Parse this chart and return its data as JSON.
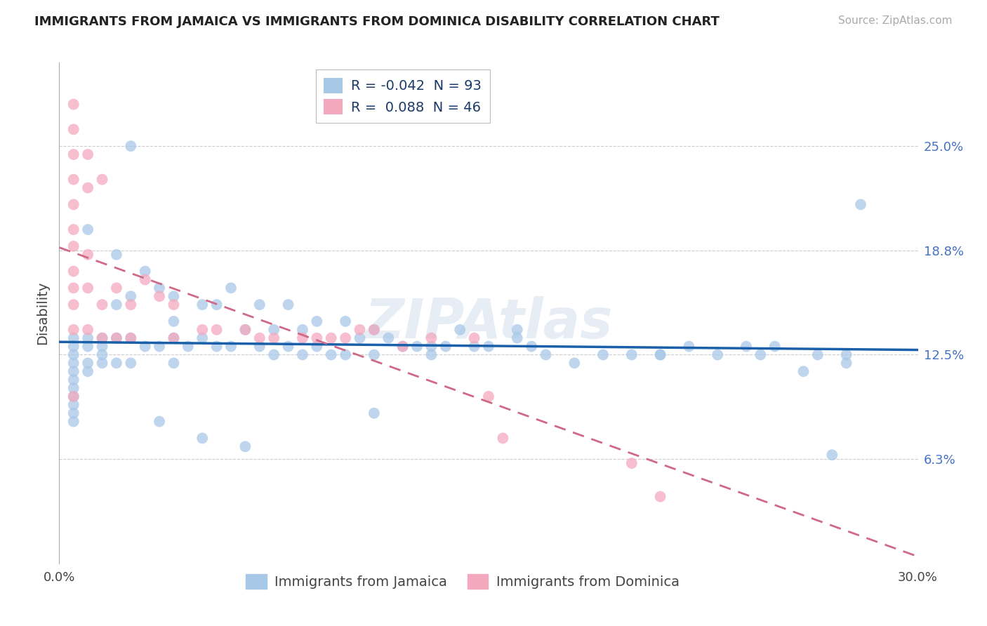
{
  "title": "IMMIGRANTS FROM JAMAICA VS IMMIGRANTS FROM DOMINICA DISABILITY CORRELATION CHART",
  "source": "Source: ZipAtlas.com",
  "ylabel": "Disability",
  "xlim": [
    0.0,
    0.3
  ],
  "ylim": [
    0.0,
    0.3
  ],
  "yticks": [
    0.0625,
    0.125,
    0.1875,
    0.25
  ],
  "ytick_labels": [
    "6.3%",
    "12.5%",
    "18.8%",
    "25.0%"
  ],
  "watermark": "ZIPAtlas",
  "jamaica_color": "#a8c8e8",
  "dominica_color": "#f4a8be",
  "jamaica_line_color": "#1a5faa",
  "dominica_line_color": "#d06888",
  "jamaica_R": -0.042,
  "jamaica_N": 93,
  "dominica_R": 0.088,
  "dominica_N": 46,
  "legend_r_jamaica_color": "#cc2222",
  "legend_r_dominica_color": "#cc2222",
  "legend_n_color": "#1155cc",
  "title_fontsize": 13,
  "source_fontsize": 11,
  "tick_fontsize": 13,
  "legend_fontsize": 14,
  "marker_size": 130,
  "jamaica_scatter_x": [
    0.005,
    0.005,
    0.005,
    0.005,
    0.005,
    0.005,
    0.005,
    0.005,
    0.005,
    0.005,
    0.005,
    0.01,
    0.01,
    0.01,
    0.01,
    0.015,
    0.015,
    0.015,
    0.015,
    0.02,
    0.02,
    0.02,
    0.02,
    0.025,
    0.025,
    0.025,
    0.03,
    0.03,
    0.035,
    0.035,
    0.04,
    0.04,
    0.04,
    0.04,
    0.045,
    0.05,
    0.05,
    0.055,
    0.055,
    0.06,
    0.06,
    0.065,
    0.07,
    0.07,
    0.075,
    0.075,
    0.08,
    0.08,
    0.085,
    0.085,
    0.09,
    0.09,
    0.095,
    0.1,
    0.1,
    0.105,
    0.11,
    0.11,
    0.115,
    0.12,
    0.125,
    0.13,
    0.135,
    0.14,
    0.145,
    0.15,
    0.16,
    0.165,
    0.17,
    0.18,
    0.19,
    0.2,
    0.21,
    0.22,
    0.23,
    0.24,
    0.245,
    0.25,
    0.26,
    0.265,
    0.275,
    0.28,
    0.27,
    0.275,
    0.21,
    0.16,
    0.13,
    0.11,
    0.065,
    0.05,
    0.035,
    0.025,
    0.01
  ],
  "jamaica_scatter_y": [
    0.135,
    0.13,
    0.125,
    0.12,
    0.115,
    0.11,
    0.105,
    0.1,
    0.095,
    0.09,
    0.085,
    0.135,
    0.13,
    0.12,
    0.115,
    0.135,
    0.13,
    0.125,
    0.12,
    0.185,
    0.155,
    0.135,
    0.12,
    0.16,
    0.135,
    0.12,
    0.175,
    0.13,
    0.165,
    0.13,
    0.16,
    0.145,
    0.135,
    0.12,
    0.13,
    0.155,
    0.135,
    0.155,
    0.13,
    0.165,
    0.13,
    0.14,
    0.155,
    0.13,
    0.14,
    0.125,
    0.155,
    0.13,
    0.14,
    0.125,
    0.145,
    0.13,
    0.125,
    0.145,
    0.125,
    0.135,
    0.14,
    0.125,
    0.135,
    0.13,
    0.13,
    0.13,
    0.13,
    0.14,
    0.13,
    0.13,
    0.135,
    0.13,
    0.125,
    0.12,
    0.125,
    0.125,
    0.125,
    0.13,
    0.125,
    0.13,
    0.125,
    0.13,
    0.115,
    0.125,
    0.12,
    0.215,
    0.065,
    0.125,
    0.125,
    0.14,
    0.125,
    0.09,
    0.07,
    0.075,
    0.085,
    0.25,
    0.2
  ],
  "dominica_scatter_x": [
    0.005,
    0.005,
    0.005,
    0.005,
    0.005,
    0.005,
    0.005,
    0.005,
    0.005,
    0.005,
    0.005,
    0.005,
    0.01,
    0.01,
    0.01,
    0.01,
    0.01,
    0.015,
    0.015,
    0.015,
    0.02,
    0.02,
    0.025,
    0.025,
    0.03,
    0.035,
    0.04,
    0.04,
    0.05,
    0.055,
    0.065,
    0.07,
    0.075,
    0.085,
    0.09,
    0.095,
    0.1,
    0.105,
    0.11,
    0.12,
    0.13,
    0.145,
    0.15,
    0.155,
    0.2,
    0.21
  ],
  "dominica_scatter_y": [
    0.275,
    0.26,
    0.245,
    0.23,
    0.215,
    0.2,
    0.19,
    0.175,
    0.165,
    0.155,
    0.14,
    0.1,
    0.245,
    0.225,
    0.185,
    0.165,
    0.14,
    0.23,
    0.155,
    0.135,
    0.165,
    0.135,
    0.155,
    0.135,
    0.17,
    0.16,
    0.155,
    0.135,
    0.14,
    0.14,
    0.14,
    0.135,
    0.135,
    0.135,
    0.135,
    0.135,
    0.135,
    0.14,
    0.14,
    0.13,
    0.135,
    0.135,
    0.1,
    0.075,
    0.06,
    0.04
  ]
}
